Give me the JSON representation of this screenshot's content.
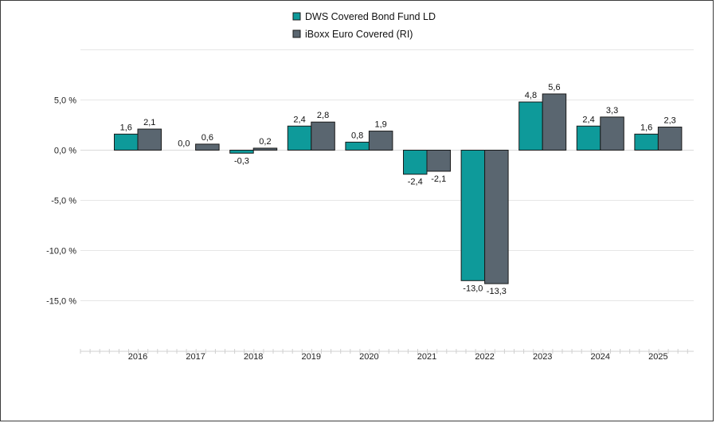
{
  "chart_data": {
    "type": "bar",
    "categories": [
      "2016",
      "2017",
      "2018",
      "2019",
      "2020",
      "2021",
      "2022",
      "2023",
      "2024",
      "2025"
    ],
    "series": [
      {
        "name": "DWS Covered Bond Fund LD",
        "color": "#0e9a9a",
        "values": [
          1.6,
          0.0,
          -0.3,
          2.4,
          0.8,
          -2.4,
          -13.0,
          4.8,
          2.4,
          1.6
        ],
        "labels": [
          "1,6",
          "0,0",
          "-0,3",
          "2,4",
          "0,8",
          "-2,4",
          "-13,0",
          "4,8",
          "2,4",
          "1,6"
        ]
      },
      {
        "name": "iBoxx Euro Covered  (RI)",
        "color": "#5a6670",
        "values": [
          2.1,
          0.6,
          0.2,
          2.8,
          1.9,
          -2.1,
          -13.3,
          5.6,
          3.3,
          2.3
        ],
        "labels": [
          "2,1",
          "0,6",
          "0,2",
          "2,8",
          "1,9",
          "-2,1",
          "-13,3",
          "5,6",
          "3,3",
          "2,3"
        ]
      }
    ],
    "yticks": [
      5.0,
      0.0,
      -5.0,
      -10.0,
      -15.0
    ],
    "ytick_labels": [
      "5,0 %",
      "0,0 %",
      "-5,0 %",
      "-10,0 %",
      "-15,0 %"
    ],
    "ylim": [
      -20,
      10
    ],
    "grid": true,
    "legend": "top-center"
  }
}
